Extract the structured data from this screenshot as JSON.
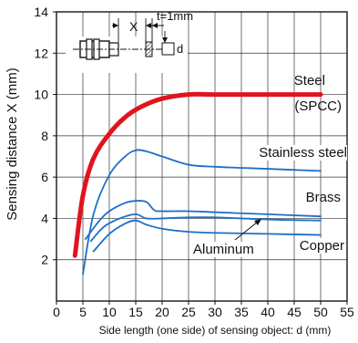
{
  "chart_data": {
    "type": "line",
    "xlabel": "Side length (one side) of sensing object: d (mm)",
    "ylabel": "Sensing distance X (mm)",
    "xlim": [
      0,
      55
    ],
    "ylim": [
      0,
      14
    ],
    "x_ticks": [
      "0",
      "5",
      "10",
      "15",
      "20",
      "25",
      "30",
      "35",
      "40",
      "45",
      "50",
      "55"
    ],
    "y_ticks": [
      "2",
      "4",
      "6",
      "8",
      "10",
      "12",
      "14"
    ],
    "grid": true,
    "series": [
      {
        "name": "Steel (SPCC)",
        "label_lines": [
          "Steel",
          "(SPCC)"
        ],
        "color": "#e0141e",
        "x": [
          3.5,
          5,
          7,
          10,
          13,
          16,
          20,
          25,
          30,
          40,
          50
        ],
        "y": [
          2.2,
          5.1,
          6.9,
          8.1,
          8.9,
          9.4,
          9.8,
          10.0,
          10.0,
          10.0,
          10.0
        ]
      },
      {
        "name": "Stainless steel",
        "label_lines": [
          "Stainless steel"
        ],
        "color": "#1e6ec8",
        "x": [
          5,
          7,
          10,
          13,
          15,
          17,
          20,
          25,
          30,
          40,
          50
        ],
        "y": [
          1.3,
          4.2,
          6.1,
          7.0,
          7.3,
          7.25,
          7.0,
          6.6,
          6.5,
          6.4,
          6.3
        ]
      },
      {
        "name": "Brass",
        "label_lines": [
          "Brass"
        ],
        "color": "#1e6ec8",
        "x": [
          5.5,
          8,
          10,
          13,
          15,
          17,
          18.5,
          20,
          25,
          30,
          40,
          50
        ],
        "y": [
          3.0,
          3.85,
          4.35,
          4.75,
          4.85,
          4.8,
          4.4,
          4.35,
          4.35,
          4.3,
          4.2,
          4.1
        ]
      },
      {
        "name": "Aluminum",
        "label_lines": [
          "Aluminum"
        ],
        "color": "#1e6ec8",
        "x": [
          6.5,
          9,
          12,
          15,
          17,
          20,
          25,
          30,
          40,
          50
        ],
        "y": [
          2.9,
          3.6,
          4.0,
          4.2,
          4.0,
          4.0,
          4.05,
          4.05,
          3.95,
          3.9
        ]
      },
      {
        "name": "Copper",
        "label_lines": [
          "Copper"
        ],
        "color": "#1e6ec8",
        "x": [
          7,
          10,
          13,
          15,
          17,
          20,
          25,
          30,
          40,
          50
        ],
        "y": [
          2.4,
          3.25,
          3.75,
          3.9,
          3.7,
          3.5,
          3.35,
          3.3,
          3.25,
          3.2
        ]
      }
    ],
    "diagram": {
      "x_label": "X",
      "t_label": "t=1mm",
      "d_label": "d"
    }
  }
}
